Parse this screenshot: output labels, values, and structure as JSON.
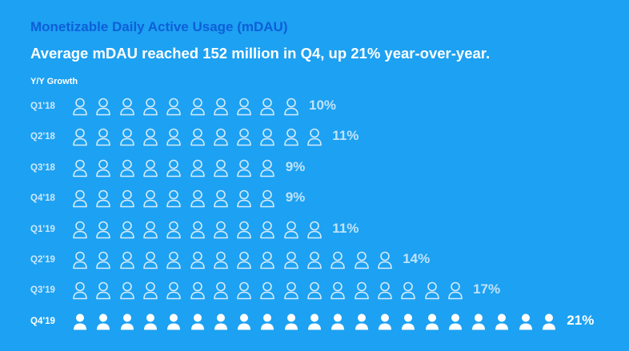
{
  "header": {
    "title": "Monetizable Daily Active Usage (mDAU)",
    "subtitle": "Average mDAU reached 152 million in Q4, up 21% year-over-year.",
    "ylabel": "Y/Y Growth"
  },
  "colors": {
    "background": "#1DA1F2",
    "title": "#0D5FD8",
    "outline_icon": "#d6ecfb",
    "highlight": "#ffffff"
  },
  "icon_name": "person-icon",
  "chart_data": {
    "type": "bar",
    "title": "Monetizable Daily Active Usage (mDAU)",
    "subtitle": "Average mDAU reached 152 million in Q4, up 21% year-over-year.",
    "ylabel": "Y/Y Growth",
    "categories": [
      "Q1'18",
      "Q2'18",
      "Q3'18",
      "Q4'18",
      "Q1'19",
      "Q2'19",
      "Q3'19",
      "Q4'19"
    ],
    "values": [
      10,
      11,
      9,
      9,
      11,
      14,
      17,
      21
    ],
    "labels": [
      "10%",
      "11%",
      "9%",
      "9%",
      "11%",
      "14%",
      "17%",
      "21%"
    ],
    "units": "%",
    "highlight_index": 7
  }
}
